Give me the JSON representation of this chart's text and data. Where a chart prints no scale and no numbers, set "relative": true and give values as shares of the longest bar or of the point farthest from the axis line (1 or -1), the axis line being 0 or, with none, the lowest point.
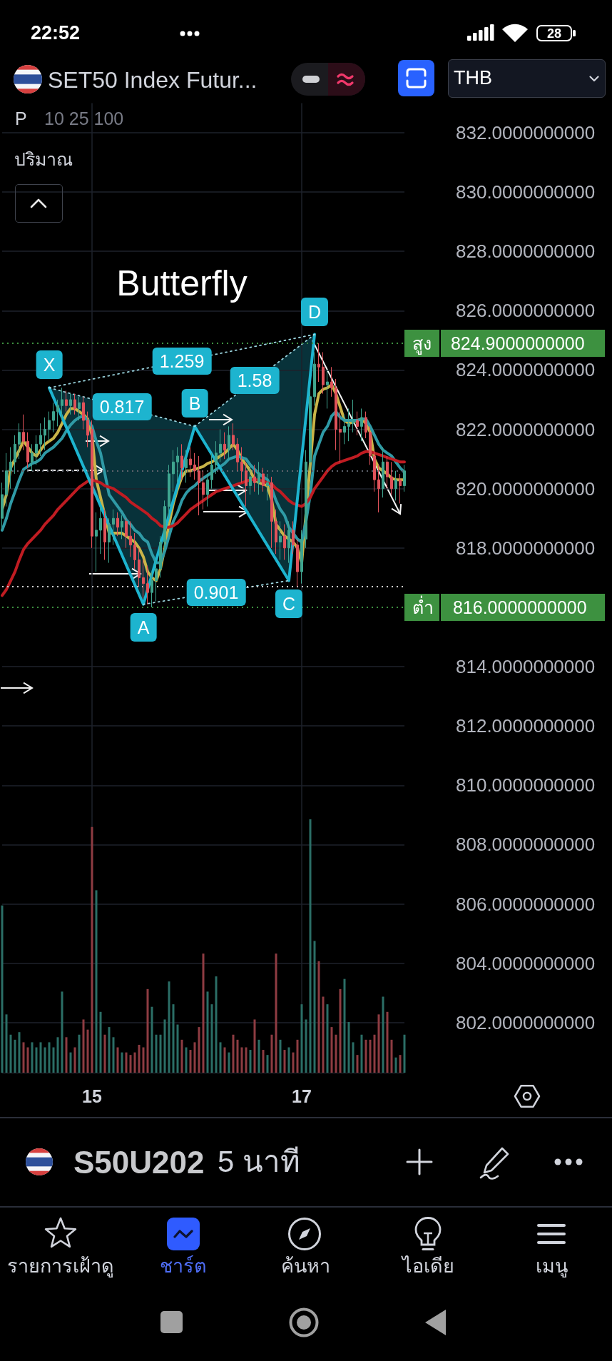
{
  "chart_data": [
    {
      "type": "candlestick",
      "title": "SET50 Index Futur...",
      "annotations": [
        "22:52",
        "28",
        "P",
        "10 25 100",
        "THB",
        "S50U202",
        "5 นาที",
        "รายการเฝ้าดู",
        "ชาร์ต",
        "ค้นหา",
        "ไอเดีย",
        "เมนู",
        {
          "text": "0.817",
          "y": 822.75
        },
        {
          "text": "1.259",
          "y": 824.3
        },
        {
          "text": "1.58",
          "y": 823.65
        },
        {
          "text": "0.901",
          "y": 816.5
        }
      ],
      "categories": [
        null,
        null,
        null,
        null,
        null,
        null,
        null,
        null,
        null,
        null,
        null,
        null,
        null,
        null,
        null,
        null,
        null,
        null,
        null,
        null,
        null,
        "15",
        null,
        null,
        null,
        null,
        null,
        null,
        null,
        null,
        null,
        null,
        null,
        null,
        null,
        null,
        null,
        null,
        null,
        null,
        null,
        null,
        null,
        null,
        null,
        null,
        null,
        null,
        null,
        null,
        null,
        null,
        null,
        null,
        null,
        null,
        null,
        null,
        null,
        null,
        null,
        null,
        null,
        null,
        null,
        null,
        null,
        null,
        null,
        null,
        "17",
        null,
        null,
        null,
        null,
        null,
        null,
        null,
        null,
        null,
        null,
        null,
        null,
        null,
        null,
        null,
        null,
        null,
        null,
        null,
        null,
        null,
        null,
        null,
        null
      ],
      "ohlc": [
        [
          819.0,
          820.2,
          818.6,
          819.8
        ],
        [
          819.8,
          821.2,
          819.4,
          820.6
        ],
        [
          820.6,
          821.4,
          820.0,
          820.9
        ],
        [
          820.9,
          821.8,
          820.5,
          821.5
        ],
        [
          821.5,
          822.2,
          821.0,
          821.9
        ],
        [
          821.9,
          822.5,
          821.3,
          821.6
        ],
        [
          821.6,
          821.9,
          820.7,
          820.9
        ],
        [
          820.9,
          821.5,
          820.6,
          821.2
        ],
        [
          821.2,
          821.8,
          820.8,
          821.5
        ],
        [
          821.5,
          822.2,
          821.1,
          821.8
        ],
        [
          821.8,
          822.4,
          821.3,
          822.0
        ],
        [
          822.0,
          822.6,
          821.6,
          822.3
        ],
        [
          822.3,
          822.9,
          821.9,
          822.6
        ],
        [
          822.6,
          823.0,
          822.1,
          822.8
        ],
        [
          822.8,
          823.4,
          822.3,
          823.0
        ],
        [
          823.0,
          823.3,
          822.6,
          822.8
        ],
        [
          822.8,
          823.2,
          822.5,
          823.0
        ],
        [
          823.0,
          823.2,
          822.5,
          822.7
        ],
        [
          822.7,
          823.1,
          822.3,
          822.9
        ],
        [
          822.9,
          823.1,
          822.0,
          822.3
        ],
        [
          822.3,
          822.6,
          821.4,
          821.8
        ],
        [
          822.0,
          822.3,
          818.0,
          818.4
        ],
        [
          818.4,
          819.2,
          817.2,
          818.6
        ],
        [
          818.6,
          819.4,
          817.8,
          819.0
        ],
        [
          819.0,
          819.3,
          817.6,
          818.2
        ],
        [
          818.2,
          819.0,
          817.5,
          818.8
        ],
        [
          818.8,
          819.3,
          818.1,
          819.0
        ],
        [
          819.0,
          819.2,
          818.4,
          818.7
        ],
        [
          818.7,
          819.1,
          818.3,
          818.9
        ],
        [
          818.9,
          819.0,
          818.0,
          818.4
        ],
        [
          818.4,
          818.9,
          817.7,
          818.1
        ],
        [
          818.1,
          818.5,
          817.3,
          817.6
        ],
        [
          817.6,
          818.0,
          816.7,
          817.0
        ],
        [
          817.0,
          817.6,
          816.3,
          816.8
        ],
        [
          816.8,
          817.4,
          816.1,
          816.5
        ],
        [
          816.5,
          817.2,
          816.0,
          816.9
        ],
        [
          816.9,
          817.6,
          816.2,
          817.3
        ],
        [
          817.3,
          818.4,
          817.0,
          818.2
        ],
        [
          818.2,
          819.6,
          817.9,
          819.4
        ],
        [
          819.4,
          820.8,
          819.0,
          820.5
        ],
        [
          820.5,
          821.3,
          819.9,
          820.9
        ],
        [
          820.9,
          821.4,
          820.2,
          821.1
        ],
        [
          821.1,
          821.5,
          820.3,
          820.7
        ],
        [
          820.7,
          821.3,
          820.2,
          821.0
        ],
        [
          821.0,
          821.4,
          820.4,
          820.8
        ],
        [
          820.8,
          821.2,
          820.3,
          820.6
        ],
        [
          820.6,
          821.1,
          819.1,
          820.2
        ],
        [
          820.2,
          820.6,
          819.3,
          819.8
        ],
        [
          819.8,
          820.5,
          819.4,
          820.3
        ],
        [
          820.3,
          821.2,
          820.0,
          820.8
        ],
        [
          820.8,
          821.6,
          820.5,
          821.2
        ],
        [
          821.2,
          822.0,
          820.9,
          821.5
        ],
        [
          821.5,
          821.9,
          821.0,
          821.3
        ],
        [
          821.3,
          822.1,
          821.0,
          821.8
        ],
        [
          821.8,
          822.2,
          821.3,
          821.5
        ],
        [
          821.5,
          821.7,
          820.6,
          820.9
        ],
        [
          820.9,
          821.4,
          820.2,
          820.6
        ],
        [
          820.6,
          820.9,
          819.4,
          820.1
        ],
        [
          820.1,
          820.8,
          819.8,
          820.4
        ],
        [
          820.4,
          820.8,
          819.9,
          820.2
        ],
        [
          820.2,
          820.9,
          819.8,
          820.5
        ],
        [
          820.5,
          820.7,
          819.9,
          820.1
        ],
        [
          820.1,
          820.5,
          819.6,
          820.2
        ],
        [
          820.2,
          820.4,
          818.0,
          818.9
        ],
        [
          818.9,
          819.3,
          817.8,
          818.2
        ],
        [
          818.2,
          818.9,
          817.6,
          818.4
        ],
        [
          818.4,
          818.8,
          817.6,
          818.0
        ],
        [
          818.0,
          818.9,
          817.5,
          818.6
        ],
        [
          818.6,
          818.9,
          817.8,
          818.1
        ],
        [
          818.1,
          818.3,
          816.7,
          817.2
        ],
        [
          817.2,
          818.6,
          816.8,
          818.3
        ],
        [
          818.3,
          821.3,
          818.0,
          820.9
        ],
        [
          820.9,
          823.4,
          820.6,
          823.1
        ],
        [
          823.1,
          824.6,
          822.8,
          824.2
        ],
        [
          824.2,
          824.9,
          823.6,
          824.1
        ],
        [
          824.1,
          824.6,
          823.2,
          823.5
        ],
        [
          823.5,
          824.0,
          822.7,
          823.6
        ],
        [
          823.6,
          824.1,
          823.1,
          823.4
        ],
        [
          823.4,
          823.7,
          821.3,
          822.0
        ],
        [
          822.0,
          822.6,
          820.9,
          821.9
        ],
        [
          821.9,
          822.5,
          821.5,
          822.1
        ],
        [
          822.1,
          822.7,
          821.6,
          822.2
        ],
        [
          822.2,
          823.0,
          821.9,
          822.3
        ],
        [
          822.3,
          822.6,
          821.8,
          822.1
        ],
        [
          822.1,
          822.7,
          821.6,
          822.4
        ],
        [
          822.4,
          822.6,
          821.7,
          821.9
        ],
        [
          821.9,
          822.1,
          820.8,
          821.1
        ],
        [
          821.1,
          821.3,
          819.9,
          820.3
        ],
        [
          820.3,
          820.8,
          819.2,
          820.0
        ],
        [
          820.0,
          821.4,
          819.7,
          820.9
        ],
        [
          820.9,
          821.1,
          820.0,
          820.4
        ],
        [
          820.4,
          820.9,
          819.8,
          820.0
        ],
        [
          820.0,
          820.6,
          819.6,
          820.3
        ],
        [
          820.3,
          820.5,
          819.5,
          820.1
        ],
        [
          820.1,
          820.8,
          819.9,
          820.6
        ]
      ],
      "colors": [
        "#3fa58f",
        "#3fa58f",
        "#3fa58f",
        "#3fa58f",
        "#3fa58f",
        "#e0525a",
        "#e0525a",
        "#3fa58f",
        "#3fa58f",
        "#3fa58f",
        "#3fa58f",
        "#3fa58f",
        "#3fa58f",
        "#3fa58f",
        "#3fa58f",
        "#e0525a",
        "#3fa58f",
        "#e0525a",
        "#3fa58f",
        "#e0525a",
        "#e0525a",
        "#e0525a",
        "#3fa58f",
        "#3fa58f",
        "#e0525a",
        "#3fa58f",
        "#3fa58f",
        "#e0525a",
        "#3fa58f",
        "#e0525a",
        "#e0525a",
        "#e0525a",
        "#e0525a",
        "#e0525a",
        "#e0525a",
        "#3fa58f",
        "#3fa58f",
        "#3fa58f",
        "#3fa58f",
        "#3fa58f",
        "#3fa58f",
        "#3fa58f",
        "#e0525a",
        "#3fa58f",
        "#e0525a",
        "#e0525a",
        "#e0525a",
        "#e0525a",
        "#3fa58f",
        "#3fa58f",
        "#3fa58f",
        "#3fa58f",
        "#e0525a",
        "#3fa58f",
        "#e0525a",
        "#e0525a",
        "#e0525a",
        "#e0525a",
        "#3fa58f",
        "#e0525a",
        "#3fa58f",
        "#e0525a",
        "#3fa58f",
        "#e0525a",
        "#e0525a",
        "#3fa58f",
        "#e0525a",
        "#3fa58f",
        "#e0525a",
        "#e0525a",
        "#3fa58f",
        "#3fa58f",
        "#3fa58f",
        "#3fa58f",
        "#e0525a",
        "#e0525a",
        "#3fa58f",
        "#e0525a",
        "#e0525a",
        "#e0525a",
        "#3fa58f",
        "#3fa58f",
        "#3fa58f",
        "#e0525a",
        "#3fa58f",
        "#e0525a",
        "#e0525a",
        "#e0525a",
        "#e0525a",
        "#3fa58f",
        "#e0525a",
        "#e0525a",
        "#3fa58f",
        "#e0525a",
        "#3fa58f"
      ],
      "series": [
        {
          "type": "line",
          "color": "#c9b448",
          "values": [
            819.3,
            819.8,
            820.7,
            821.0,
            821.3,
            821.6,
            821.4,
            821.2,
            821.1,
            821.3,
            821.5,
            821.6,
            821.7,
            821.9,
            822.2,
            822.5,
            822.7,
            822.7,
            822.6,
            822.5,
            822.35,
            821.8,
            820.3,
            819.7,
            819.1,
            818.5,
            818.5,
            818.5,
            818.5,
            818.4,
            818.3,
            818.2,
            818.0,
            817.7,
            817.2,
            817.0,
            816.9,
            817.3,
            818.0,
            818.8,
            819.5,
            820.0,
            820.4,
            820.6,
            820.6,
            820.65,
            820.7,
            820.75,
            820.85,
            820.9,
            821.0,
            821.1,
            821.2,
            821.35,
            821.5,
            821.3,
            821.0,
            820.8,
            820.6,
            820.3,
            820.2,
            820.15,
            820.1,
            819.6,
            818.8,
            818.6,
            818.4,
            818.3,
            818.2,
            818.0,
            817.5,
            null,
            null,
            822.5,
            823.2,
            823.35,
            823.4,
            823.5,
            823.2,
            822.75,
            822.3,
            822.2,
            822.25,
            822.3,
            822.35,
            822.2,
            821.9,
            821.0,
            820.7,
            820.6,
            820.5,
            820.35,
            820.3,
            820.3,
            820.3
          ]
        },
        {
          "type": "line",
          "color": "#2f9aa6",
          "values": [
            818.6,
            819.0,
            819.5,
            819.9,
            820.3,
            820.65,
            820.75,
            820.85,
            820.9,
            821.0,
            821.2,
            821.3,
            821.4,
            821.55,
            821.7,
            821.95,
            822.15,
            822.3,
            822.4,
            822.45,
            822.3,
            822.1,
            821.6,
            821.2,
            820.5,
            819.8,
            819.6,
            819.4,
            819.2,
            818.95,
            818.8,
            818.6,
            818.5,
            818.3,
            818.2,
            817.8,
            817.5,
            817.5,
            817.9,
            818.4,
            818.9,
            819.2,
            819.6,
            819.85,
            820.0,
            820.1,
            820.25,
            820.35,
            820.45,
            820.55,
            820.65,
            820.75,
            820.85,
            821.0,
            821.05,
            821.1,
            821.05,
            821.0,
            820.8,
            820.65,
            820.5,
            820.4,
            820.3,
            820.0,
            819.6,
            819.3,
            819.1,
            818.7,
            818.5,
            818.3,
            818.2,
            818.9,
            819.8,
            821.1,
            821.5,
            821.9,
            822.1,
            822.45,
            822.6,
            822.4,
            822.3,
            822.3,
            822.3,
            822.3,
            822.35,
            822.35,
            822.1,
            821.8,
            821.5,
            821.3,
            821.2,
            821.1,
            820.9,
            820.7,
            820.55
          ]
        },
        {
          "type": "line",
          "color": "#c01c22",
          "values": [
            816.4,
            816.6,
            816.9,
            817.2,
            817.6,
            817.95,
            818.15,
            818.3,
            818.45,
            818.6,
            818.8,
            818.95,
            819.1,
            819.3,
            819.45,
            819.6,
            819.75,
            819.9,
            820.05,
            820.15,
            820.25,
            820.3,
            820.25,
            820.2,
            820.1,
            820.05,
            820.0,
            819.9,
            819.8,
            819.7,
            819.55,
            819.45,
            819.35,
            819.25,
            819.15,
            819.0,
            818.9,
            818.75,
            818.7,
            818.7,
            818.75,
            818.85,
            819.0,
            819.15,
            819.3,
            819.4,
            819.5,
            819.6,
            819.7,
            819.8,
            819.9,
            819.95,
            820.0,
            820.05,
            820.1,
            820.15,
            820.2,
            820.25,
            820.3,
            820.3,
            820.3,
            820.25,
            820.2,
            820.15,
            820.0,
            819.9,
            819.75,
            819.6,
            819.5,
            819.45,
            819.4,
            819.5,
            819.7,
            820.0,
            820.2,
            820.4,
            820.6,
            820.75,
            820.85,
            820.9,
            820.95,
            821.0,
            821.05,
            821.1,
            821.2,
            821.25,
            821.25,
            821.2,
            821.15,
            821.1,
            821.05,
            821.0,
            820.95,
            820.9,
            820.9
          ]
        },
        {
          "type": "line",
          "name": "Butterfly",
          "color": "#1db4cf",
          "values": [
            null,
            null,
            null,
            null,
            null,
            null,
            null,
            null,
            null,
            null,
            null,
            823.4,
            null,
            null,
            null,
            null,
            null,
            null,
            null,
            null,
            null,
            null,
            null,
            null,
            null,
            null,
            null,
            null,
            null,
            null,
            null,
            null,
            null,
            816.1,
            null,
            null,
            null,
            null,
            null,
            null,
            null,
            null,
            null,
            null,
            null,
            822.1,
            null,
            null,
            null,
            null,
            null,
            null,
            null,
            null,
            null,
            null,
            null,
            null,
            null,
            null,
            null,
            null,
            null,
            null,
            null,
            null,
            null,
            816.9,
            null,
            null,
            null,
            null,
            null,
            825.2,
            null,
            null,
            null,
            null,
            null,
            null,
            null,
            null,
            null,
            null,
            null,
            null,
            null,
            null,
            null,
            null,
            null,
            null,
            null,
            null,
            null
          ],
          "value_labels": [
            null,
            null,
            null,
            null,
            null,
            null,
            null,
            null,
            null,
            null,
            null,
            "X",
            null,
            null,
            null,
            null,
            null,
            null,
            null,
            null,
            null,
            null,
            null,
            null,
            null,
            null,
            null,
            null,
            null,
            null,
            null,
            null,
            null,
            "A",
            null,
            null,
            null,
            null,
            null,
            null,
            null,
            null,
            null,
            null,
            null,
            "B",
            null,
            null,
            null,
            null,
            null,
            null,
            null,
            null,
            null,
            null,
            null,
            null,
            null,
            null,
            null,
            null,
            null,
            null,
            null,
            null,
            null,
            "C",
            null,
            null,
            null,
            null,
            null,
            "D",
            null,
            null,
            null,
            null,
            null,
            null,
            null,
            null,
            null,
            null,
            null,
            null,
            null,
            null,
            null,
            null,
            null,
            null,
            null,
            null,
            null
          ]
        },
        {
          "type": "line",
          "color": "#9ad4de",
          "line_style": "dotted",
          "values": [
            null,
            null,
            null,
            null,
            null,
            null,
            null,
            null,
            null,
            null,
            null,
            823.4,
            null,
            null,
            null,
            null,
            null,
            null,
            null,
            null,
            null,
            null,
            null,
            null,
            null,
            null,
            null,
            null,
            null,
            null,
            null,
            null,
            null,
            null,
            null,
            null,
            null,
            null,
            null,
            null,
            null,
            null,
            null,
            null,
            null,
            822.1,
            null,
            null,
            null,
            null,
            null,
            null,
            null,
            null,
            null,
            null,
            null,
            null,
            null,
            null,
            null,
            null,
            null,
            null,
            null,
            null,
            null,
            null,
            null,
            null,
            null,
            null,
            null,
            null,
            null,
            null,
            null,
            null,
            null,
            null,
            null,
            null,
            null,
            null,
            null,
            null,
            null,
            null,
            null,
            null,
            null,
            null,
            null,
            null,
            null
          ]
        },
        {
          "type": "line",
          "color": "#9ad4de",
          "line_style": "dotted",
          "values": [
            null,
            null,
            null,
            null,
            null,
            null,
            null,
            null,
            null,
            null,
            null,
            823.4,
            null,
            null,
            null,
            null,
            null,
            null,
            null,
            null,
            null,
            null,
            null,
            null,
            null,
            null,
            null,
            null,
            null,
            null,
            null,
            null,
            null,
            null,
            null,
            null,
            null,
            null,
            null,
            null,
            null,
            null,
            null,
            null,
            null,
            null,
            null,
            null,
            null,
            null,
            null,
            null,
            null,
            null,
            null,
            null,
            null,
            null,
            null,
            null,
            null,
            null,
            null,
            null,
            null,
            null,
            null,
            null,
            null,
            null,
            null,
            null,
            null,
            825.2,
            null,
            null,
            null,
            null,
            null,
            null,
            null,
            null,
            null,
            null,
            null,
            null,
            null,
            null,
            null,
            null,
            null,
            null,
            null,
            null,
            null
          ]
        },
        {
          "type": "line",
          "color": "#9ad4de",
          "line_style": "dotted",
          "values": [
            null,
            null,
            null,
            null,
            null,
            null,
            null,
            null,
            null,
            null,
            null,
            null,
            null,
            null,
            null,
            null,
            null,
            null,
            null,
            null,
            null,
            null,
            null,
            null,
            null,
            null,
            null,
            null,
            null,
            null,
            null,
            null,
            null,
            null,
            null,
            null,
            null,
            null,
            null,
            null,
            null,
            null,
            null,
            null,
            null,
            822.1,
            null,
            null,
            null,
            null,
            null,
            null,
            null,
            null,
            null,
            null,
            null,
            null,
            null,
            null,
            null,
            null,
            null,
            null,
            null,
            null,
            null,
            null,
            null,
            null,
            null,
            null,
            null,
            825.2,
            null,
            null,
            null,
            null,
            null,
            null,
            null,
            null,
            null,
            null,
            null,
            null,
            null,
            null,
            null,
            null,
            null,
            null,
            null,
            null,
            null
          ]
        },
        {
          "type": "line",
          "color": "#9ad4de",
          "line_style": "dotted",
          "values": [
            null,
            null,
            null,
            null,
            null,
            null,
            null,
            null,
            null,
            null,
            null,
            null,
            null,
            null,
            null,
            null,
            null,
            null,
            null,
            null,
            null,
            null,
            null,
            null,
            null,
            null,
            null,
            null,
            null,
            null,
            null,
            null,
            null,
            816.1,
            null,
            null,
            null,
            null,
            null,
            null,
            null,
            null,
            null,
            null,
            null,
            null,
            null,
            null,
            null,
            null,
            null,
            null,
            null,
            null,
            null,
            null,
            null,
            null,
            null,
            null,
            null,
            null,
            null,
            null,
            null,
            null,
            null,
            816.9,
            null,
            null,
            null,
            null,
            null,
            null,
            null,
            null,
            null,
            null,
            null,
            null,
            null,
            null,
            null,
            null,
            null,
            null,
            null,
            null,
            null,
            null,
            null,
            null,
            null,
            null,
            null
          ]
        }
      ],
      "ylim": [
        800.4,
        833
      ],
      "yticks": [
        {
          "value": 802,
          "label": "802.0000000000"
        },
        {
          "value": 804,
          "label": "804.0000000000"
        },
        {
          "value": 806,
          "label": "806.0000000000"
        },
        {
          "value": 808,
          "label": "808.0000000000"
        },
        {
          "value": 810,
          "label": "810.0000000000"
        },
        {
          "value": 812,
          "label": "812.0000000000"
        },
        {
          "value": 814,
          "label": "814.0000000000"
        },
        {
          "value": 818,
          "label": "818.0000000000"
        },
        {
          "value": 820,
          "label": "820.0000000000"
        },
        {
          "value": 822,
          "label": "822.0000000000"
        },
        {
          "value": 824,
          "label": "824.0000000000"
        },
        {
          "value": 826,
          "label": "826.0000000000"
        },
        {
          "value": 828,
          "label": "828.0000000000"
        },
        {
          "value": 830,
          "label": "830.0000000000"
        },
        {
          "value": 832,
          "label": "832.0000000000"
        }
      ],
      "ref_lines": [
        {
          "axis": "y",
          "value": 824.9,
          "label": "สูง 824.9000000000",
          "color": "#3d9140",
          "line_style": "dotted"
        },
        {
          "axis": "y",
          "value": 816.0,
          "label": "ต่ำ 816.0000000000",
          "color": "#3d9140",
          "line_style": "dotted"
        },
        {
          "axis": "y",
          "value": 820.6,
          "color": "#5d616b",
          "line_style": "dotted"
        },
        {
          "axis": "y",
          "value": 816.7,
          "color": "#d0d0d0",
          "line_style": "dotted"
        }
      ],
      "grid": true,
      "tick_labels": "y"
    },
    {
      "type": "bar",
      "title": "ปริมาณ",
      "relative": true,
      "categories": [
        null,
        null,
        null,
        null,
        null,
        null,
        null,
        null,
        null,
        null,
        null,
        null,
        null,
        null,
        null,
        null,
        null,
        null,
        null,
        null,
        null,
        "15",
        null,
        null,
        null,
        null,
        null,
        null,
        null,
        null,
        null,
        null,
        null,
        null,
        null,
        null,
        null,
        null,
        null,
        null,
        null,
        null,
        null,
        null,
        null,
        null,
        null,
        null,
        null,
        null,
        null,
        null,
        null,
        null,
        null,
        null,
        null,
        null,
        null,
        null,
        null,
        null,
        null,
        null,
        null,
        null,
        null,
        null,
        null,
        null,
        "17",
        null,
        null,
        null,
        null,
        null,
        null,
        null,
        null,
        null,
        null,
        null,
        null,
        null,
        null,
        null,
        null,
        null,
        null,
        null,
        null,
        null,
        null,
        null,
        null
      ],
      "values": [
        0.66,
        0.23,
        0.15,
        0.13,
        0.16,
        0.12,
        0.1,
        0.12,
        0.1,
        0.12,
        0.1,
        0.12,
        0.1,
        0.14,
        0.32,
        0.14,
        0.08,
        0.1,
        0.15,
        0.21,
        0.17,
        0.97,
        0.72,
        0.24,
        0.15,
        0.18,
        0.14,
        0.1,
        0.08,
        0.08,
        0.07,
        0.08,
        0.11,
        0.1,
        0.33,
        0.26,
        0.15,
        0.15,
        0.21,
        0.36,
        0.27,
        0.19,
        0.13,
        0.1,
        0.09,
        0.12,
        0.18,
        0.47,
        0.32,
        0.27,
        0.38,
        0.12,
        0.1,
        0.08,
        0.15,
        0.13,
        0.1,
        0.1,
        0.09,
        0.21,
        0.13,
        0.09,
        0.07,
        0.15,
        0.47,
        0.13,
        0.09,
        0.1,
        0.08,
        0.13,
        0.27,
        0.21,
        1,
        0.52,
        0.44,
        0.3,
        0.27,
        0.18,
        0.15,
        0.33,
        0.37,
        0.2,
        0.12,
        0.07,
        0.15,
        0.13,
        0.13,
        0.15,
        0.23,
        0.3,
        0.24,
        0.13,
        0.06,
        0.07,
        0.15
      ],
      "colors": [
        "#2b6e66",
        "#2b6e66",
        "#2b6e66",
        "#2b6e66",
        "#2b6e66",
        "#8e3c42",
        "#8e3c42",
        "#2b6e66",
        "#2b6e66",
        "#2b6e66",
        "#2b6e66",
        "#2b6e66",
        "#2b6e66",
        "#2b6e66",
        "#2b6e66",
        "#8e3c42",
        "#2b6e66",
        "#8e3c42",
        "#2b6e66",
        "#8e3c42",
        "#8e3c42",
        "#8e3c42",
        "#2b6e66",
        "#2b6e66",
        "#8e3c42",
        "#2b6e66",
        "#2b6e66",
        "#8e3c42",
        "#2b6e66",
        "#8e3c42",
        "#8e3c42",
        "#8e3c42",
        "#8e3c42",
        "#8e3c42",
        "#8e3c42",
        "#2b6e66",
        "#2b6e66",
        "#2b6e66",
        "#2b6e66",
        "#2b6e66",
        "#2b6e66",
        "#2b6e66",
        "#8e3c42",
        "#2b6e66",
        "#8e3c42",
        "#8e3c42",
        "#8e3c42",
        "#8e3c42",
        "#2b6e66",
        "#2b6e66",
        "#2b6e66",
        "#2b6e66",
        "#8e3c42",
        "#2b6e66",
        "#8e3c42",
        "#8e3c42",
        "#8e3c42",
        "#8e3c42",
        "#2b6e66",
        "#8e3c42",
        "#2b6e66",
        "#8e3c42",
        "#2b6e66",
        "#8e3c42",
        "#8e3c42",
        "#2b6e66",
        "#8e3c42",
        "#2b6e66",
        "#8e3c42",
        "#8e3c42",
        "#2b6e66",
        "#2b6e66",
        "#2b6e66",
        "#2b6e66",
        "#8e3c42",
        "#8e3c42",
        "#2b6e66",
        "#8e3c42",
        "#8e3c42",
        "#8e3c42",
        "#2b6e66",
        "#2b6e66",
        "#2b6e66",
        "#8e3c42",
        "#2b6e66",
        "#8e3c42",
        "#8e3c42",
        "#8e3c42",
        "#8e3c42",
        "#2b6e66",
        "#8e3c42",
        "#8e3c42",
        "#2b6e66",
        "#8e3c42",
        "#2b6e66"
      ],
      "tick_labels": "x"
    }
  ]
}
